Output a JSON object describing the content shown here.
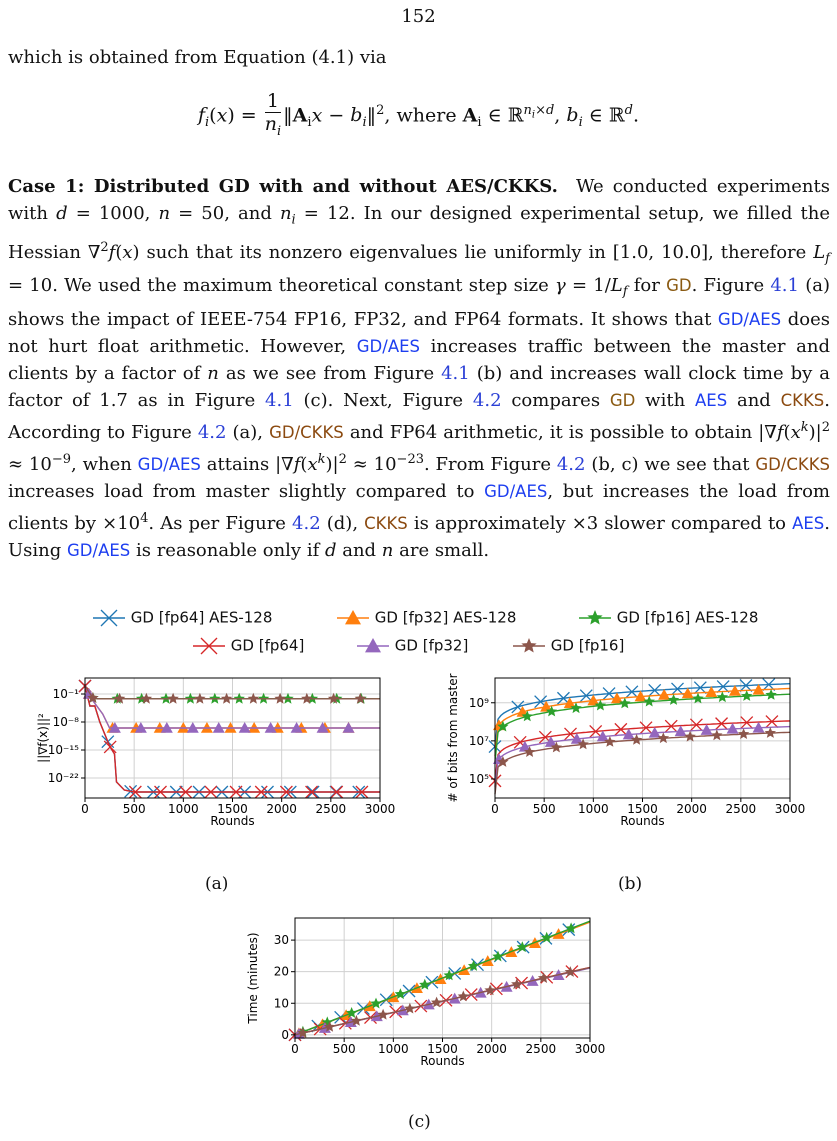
{
  "page_number": "152",
  "intro": "which is obtained from Equation (4.1) via",
  "equation": {
    "lhs": "f",
    "where_text": ", where",
    "text": "f_i(x) = 1/n_i ||A_i x − b_i||^2, where A_i ∈ R^{n_i×d}, b_i ∈ R^d."
  },
  "case_heading": "Case 1: Distributed GD with and without AES/CKKS.",
  "body_lines": [
    "We conducted",
    "experiments with d = 1000, n = 50, and n_i = 12. In our designed experimental",
    "setup, we filled the Hessian ∇²f(x) such that its nonzero eigenvalues lie uniformly",
    "in [1.0, 10.0], therefore L_f = 10. We used the maximum theoretical constant step",
    "size γ = 1/L_f for GD. Figure 4.1 (a) shows the impact of IEEE-754 FP16, FP32,",
    "and FP64 formats. It shows that GD/AES does not hurt float arithmetic. However,",
    "GD/AES increases traffic between the master and clients by a factor of n as we see",
    "from Figure 4.1 (b) and increases wall clock time by a factor of 1.7 as in Figure 4.1",
    "(c). Next, Figure 4.2 compares GD with AES and CKKS. According to Figure 4.2",
    "(a), GD/CKKS and FP64 arithmetic, it is possible to obtain |∇f(x^k)|² ≈ 10^−9,",
    "when GD/AES attains |∇f(x^k)|² ≈ 10^−23. From Figure 4.2 (b, c) we see that",
    "GD/CKKS increases load from master slightly compared to GD/AES, but increases",
    "the load from clients by ×10^4. As per Figure 4.2 (d), CKKS is approximately ×3",
    "slower compared to AES. Using GD/AES is reasonable only if d and n are small."
  ],
  "legend": [
    {
      "label": "GD [fp64] AES-128",
      "color": "#1f77b4",
      "marker": "x"
    },
    {
      "label": "GD [fp32] AES-128",
      "color": "#ff7f0e",
      "marker": "triangle"
    },
    {
      "label": "GD [fp16] AES-128",
      "color": "#2ca02c",
      "marker": "star"
    },
    {
      "label": "GD [fp64]",
      "color": "#d62728",
      "marker": "x"
    },
    {
      "label": "GD [fp32]",
      "color": "#9467bd",
      "marker": "triangle"
    },
    {
      "label": "GD [fp16]",
      "color": "#8c564b",
      "marker": "star"
    }
  ],
  "captions": {
    "a": "(a)",
    "b": "(b)",
    "c": "(c)"
  },
  "chart_data": [
    {
      "id": "a",
      "type": "line",
      "xlabel": "Rounds",
      "ylabel": "||∇f(x)||²",
      "xlim": [
        0,
        3000
      ],
      "ylim": [
        -27,
        3
      ],
      "y_scale": "log",
      "grid": true,
      "x_ticks": [
        "0",
        "500",
        "1000",
        "1500",
        "2000",
        "2500",
        "3000"
      ],
      "y_ticks": [
        {
          "label": "10⁻¹",
          "exp": -1
        },
        {
          "label": "10⁻⁸",
          "exp": -8
        },
        {
          "label": "10⁻¹⁵",
          "exp": -15
        },
        {
          "label": "10⁻²²",
          "exp": -22
        }
      ],
      "series": [
        {
          "name": "GD [fp64] AES-128",
          "points": [
            [
              0,
              1
            ],
            [
              50,
              -4
            ],
            [
              100,
              -4
            ],
            [
              150,
              -8
            ],
            [
              250,
              -14
            ],
            [
              300,
              -16
            ],
            [
              320,
              -23
            ],
            [
              400,
              -25
            ],
            [
              500,
              -25.5
            ],
            [
              3000,
              -25.5
            ]
          ]
        },
        {
          "name": "GD [fp32] AES-128",
          "points": [
            [
              0,
              1
            ],
            [
              60,
              -2
            ],
            [
              120,
              -4
            ],
            [
              180,
              -6
            ],
            [
              250,
              -9.5
            ],
            [
              3000,
              -9.5
            ]
          ]
        },
        {
          "name": "GD [fp16] AES-128",
          "points": [
            [
              0,
              1
            ],
            [
              80,
              -2
            ],
            [
              130,
              -2.2
            ],
            [
              3000,
              -2.2
            ]
          ]
        },
        {
          "name": "GD [fp64]",
          "points": [
            [
              0,
              1
            ],
            [
              50,
              -4
            ],
            [
              100,
              -4
            ],
            [
              150,
              -8
            ],
            [
              250,
              -14
            ],
            [
              300,
              -16
            ],
            [
              320,
              -23
            ],
            [
              400,
              -25
            ],
            [
              500,
              -25.5
            ],
            [
              3000,
              -25.5
            ]
          ]
        },
        {
          "name": "GD [fp32]",
          "points": [
            [
              0,
              1
            ],
            [
              60,
              -2
            ],
            [
              120,
              -4
            ],
            [
              180,
              -6
            ],
            [
              250,
              -9.5
            ],
            [
              3000,
              -9.5
            ]
          ]
        },
        {
          "name": "GD [fp16]",
          "points": [
            [
              0,
              1
            ],
            [
              80,
              -2
            ],
            [
              130,
              -2.2
            ],
            [
              3000,
              -2.2
            ]
          ]
        }
      ]
    },
    {
      "id": "b",
      "type": "line",
      "xlabel": "Rounds",
      "ylabel": "# of bits from master",
      "xlim": [
        0,
        3000
      ],
      "ylim": [
        4,
        10.3
      ],
      "y_scale": "log",
      "grid": true,
      "x_ticks": [
        "0",
        "500",
        "1000",
        "1500",
        "2000",
        "2500",
        "3000"
      ],
      "y_ticks": [
        {
          "label": "10⁵",
          "exp": 5
        },
        {
          "label": "10⁷",
          "exp": 7
        },
        {
          "label": "10⁹",
          "exp": 9
        }
      ],
      "series": [
        {
          "name": "GD [fp64] AES-128",
          "start": 6.7,
          "end": 10.0
        },
        {
          "name": "GD [fp32] AES-128",
          "start": 6.2,
          "end": 9.75
        },
        {
          "name": "GD [fp16] AES-128",
          "start": 5.9,
          "end": 9.45
        },
        {
          "name": "GD [fp64]",
          "start": 4.9,
          "end": 8.05
        },
        {
          "name": "GD [fp32]",
          "start": 4.6,
          "end": 7.75
        },
        {
          "name": "GD [fp16]",
          "start": 4.2,
          "end": 7.45
        }
      ]
    },
    {
      "id": "c",
      "type": "line",
      "xlabel": "Rounds",
      "ylabel": "Time (minutes)",
      "xlim": [
        0,
        3000
      ],
      "ylim": [
        -1,
        37
      ],
      "grid": true,
      "x_ticks": [
        "0",
        "500",
        "1000",
        "1500",
        "2000",
        "2500",
        "3000"
      ],
      "y_ticks": [
        {
          "label": "0",
          "v": 0
        },
        {
          "label": "10",
          "v": 10
        },
        {
          "label": "20",
          "v": 20
        },
        {
          "label": "30",
          "v": 30
        }
      ],
      "series": [
        {
          "name": "GD [fp64] AES-128",
          "slope": 0.01197
        },
        {
          "name": "GD [fp32] AES-128",
          "slope": 0.0119
        },
        {
          "name": "GD [fp16] AES-128",
          "slope": 0.012
        },
        {
          "name": "GD [fp64]",
          "slope": 0.00712
        },
        {
          "name": "GD [fp32]",
          "slope": 0.00705
        },
        {
          "name": "GD [fp16]",
          "slope": 0.0071
        }
      ]
    }
  ]
}
